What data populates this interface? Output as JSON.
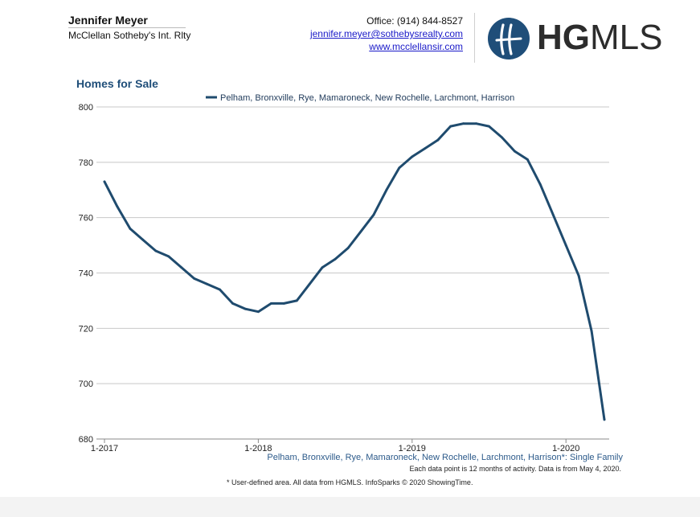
{
  "header": {
    "agent_name": "Jennifer Meyer",
    "agent_company": "McClellan Sotheby's Int. Rlty",
    "office": "Office: (914) 844-8527",
    "email": "jennifer.meyer@sothebysrealty.com",
    "website": "www.mcclellansir.com",
    "logo_text_bold": "HG",
    "logo_text_light": "MLS",
    "logo_color": "#1f4e79"
  },
  "footer": {
    "subarea": "Pelham, Bronxville, Rye, Mamaroneck, New Rochelle, Larchmont, Harrison*: Single Family",
    "note_activity": "Each data point is 12 months of activity. Data is from May 4, 2020.",
    "note_source": "* User-defined area. All data from HGMLS. InfoSparks © 2020 ShowingTime."
  },
  "chart_data": {
    "type": "line",
    "title": "Homes for Sale",
    "xlabel": "",
    "ylabel": "",
    "ylim": [
      680,
      800
    ],
    "yticks": [
      680,
      700,
      720,
      740,
      760,
      780,
      800
    ],
    "xtick_labels": [
      "1-2017",
      "1-2018",
      "1-2019",
      "1-2020"
    ],
    "grid": true,
    "legend_position": "top-center",
    "x": [
      "1-2017",
      "2-2017",
      "3-2017",
      "4-2017",
      "5-2017",
      "6-2017",
      "7-2017",
      "8-2017",
      "9-2017",
      "10-2017",
      "11-2017",
      "12-2017",
      "1-2018",
      "2-2018",
      "3-2018",
      "4-2018",
      "5-2018",
      "6-2018",
      "7-2018",
      "8-2018",
      "9-2018",
      "10-2018",
      "11-2018",
      "12-2018",
      "1-2019",
      "2-2019",
      "3-2019",
      "4-2019",
      "5-2019",
      "6-2019",
      "7-2019",
      "8-2019",
      "9-2019",
      "10-2019",
      "11-2019",
      "12-2019",
      "1-2020",
      "2-2020",
      "3-2020",
      "4-2020"
    ],
    "series": [
      {
        "name": "Pelham, Bronxville, Rye, Mamaroneck, New Rochelle, Larchmont, Harrison",
        "color": "#1f4b6e",
        "values": [
          773,
          764,
          756,
          752,
          748,
          746,
          742,
          738,
          736,
          734,
          729,
          727,
          726,
          729,
          729,
          730,
          736,
          742,
          745,
          749,
          755,
          761,
          770,
          778,
          782,
          785,
          788,
          793,
          794,
          794,
          793,
          789,
          784,
          781,
          772,
          761,
          750,
          739,
          719,
          687
        ]
      }
    ]
  }
}
